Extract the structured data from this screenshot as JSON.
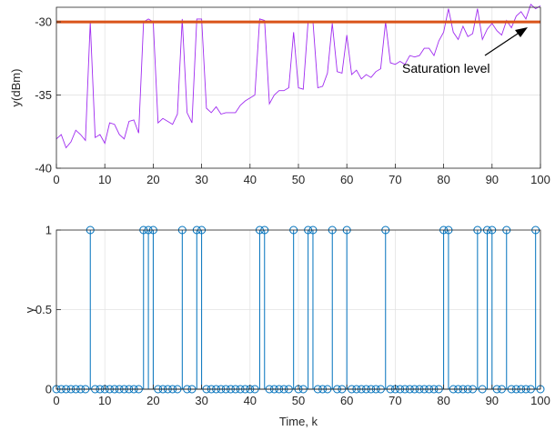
{
  "chart_data": [
    {
      "type": "line",
      "xlabel": "",
      "ylabel": "y(dBm)",
      "xlim": [
        0,
        100
      ],
      "ylim": [
        -40,
        -29
      ],
      "xticks": [
        "0",
        "10",
        "20",
        "30",
        "40",
        "50",
        "60",
        "70",
        "80",
        "90",
        "100"
      ],
      "yticks": [
        "-30",
        "-35",
        "-40"
      ],
      "grid": true,
      "colors": {
        "signal": "#A02CF0",
        "saturation": "#D95319"
      },
      "series": [
        {
          "name": "",
          "x": [
            0,
            1,
            2,
            3,
            4,
            5,
            6,
            7,
            8,
            9,
            10,
            11,
            12,
            13,
            14,
            15,
            16,
            17,
            18,
            19,
            20,
            21,
            22,
            23,
            24,
            25,
            26,
            27,
            28,
            29,
            30,
            31,
            32,
            33,
            34,
            35,
            36,
            37,
            38,
            39,
            40,
            41,
            42,
            43,
            44,
            45,
            46,
            47,
            48,
            49,
            50,
            51,
            52,
            53,
            54,
            55,
            56,
            57,
            58,
            59,
            60,
            61,
            62,
            63,
            64,
            65,
            66,
            67,
            68,
            69,
            70,
            71,
            72,
            73,
            74,
            75,
            76,
            77,
            78,
            79,
            80,
            81,
            82,
            83,
            84,
            85,
            86,
            87,
            88,
            89,
            90,
            91,
            92,
            93,
            94,
            95,
            96,
            97,
            98,
            99,
            100
          ],
          "values": [
            -38.0,
            -37.7,
            -38.6,
            -38.2,
            -37.4,
            -37.7,
            -38.1,
            -30.0,
            -37.9,
            -37.7,
            -38.3,
            -36.9,
            -37.0,
            -37.7,
            -38.0,
            -36.8,
            -36.7,
            -37.6,
            -30.0,
            -29.8,
            -30.0,
            -36.9,
            -36.6,
            -36.8,
            -37.0,
            -36.3,
            -29.8,
            -36.2,
            -36.9,
            -29.8,
            -29.8,
            -35.9,
            -36.2,
            -35.8,
            -36.3,
            -36.2,
            -36.2,
            -36.2,
            -35.7,
            -35.4,
            -35.2,
            -35.0,
            -29.8,
            -29.9,
            -35.6,
            -35.0,
            -34.7,
            -34.7,
            -34.5,
            -30.7,
            -34.5,
            -34.6,
            -30.0,
            -30.0,
            -34.5,
            -34.4,
            -33.5,
            -30.1,
            -33.4,
            -33.5,
            -30.9,
            -33.6,
            -33.3,
            -33.9,
            -33.6,
            -33.8,
            -33.4,
            -33.2,
            -30.0,
            -32.8,
            -32.9,
            -32.7,
            -32.9,
            -32.3,
            -32.4,
            -32.3,
            -31.8,
            -31.8,
            -32.3,
            -31.3,
            -30.7,
            -29.1,
            -30.7,
            -31.2,
            -30.3,
            -31.0,
            -30.8,
            -29.1,
            -31.2,
            -30.5,
            -30.1,
            -30.6,
            -30.9,
            -29.9,
            -30.4,
            -29.6,
            -29.3,
            -29.8,
            -28.8,
            -29.1,
            -28.9
          ]
        }
      ],
      "saturation": {
        "value": -30,
        "label": "Saturation level"
      }
    },
    {
      "type": "scatter",
      "subtype": "stem",
      "xlabel": "Time, k",
      "ylabel": "γ",
      "xlim": [
        0,
        100
      ],
      "ylim": [
        0,
        1
      ],
      "xticks": [
        "0",
        "10",
        "20",
        "30",
        "40",
        "50",
        "60",
        "70",
        "80",
        "90",
        "100"
      ],
      "yticks": [
        "0",
        "0.5",
        "1"
      ],
      "grid": true,
      "colors": {
        "stem": "#0072BD"
      },
      "ones": [
        7,
        18,
        19,
        20,
        26,
        29,
        30,
        42,
        43,
        49,
        52,
        53,
        57,
        60,
        68,
        80,
        81,
        87,
        89,
        90,
        93,
        99
      ],
      "other_value": 0
    }
  ]
}
